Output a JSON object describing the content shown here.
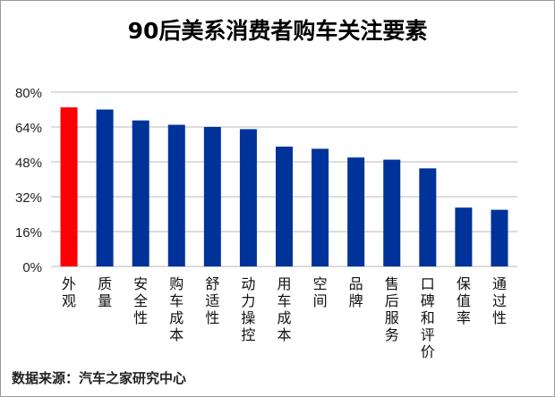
{
  "chart_data": {
    "type": "bar",
    "title": "90后美系消费者购车关注要素",
    "categories": [
      "外观",
      "质量",
      "安全性",
      "购车成本",
      "舒适性",
      "动力操控",
      "用车成本",
      "空间",
      "品牌",
      "售后服务",
      "口碑和评价",
      "保值率",
      "通过性"
    ],
    "values": [
      73,
      72,
      67,
      65,
      64,
      63,
      55,
      54,
      50,
      49,
      45,
      27,
      26
    ],
    "ylim": [
      0,
      80
    ],
    "yticks": [
      "0%",
      "16%",
      "32%",
      "48%",
      "64%",
      "80%"
    ],
    "grid": true,
    "colors": {
      "highlight": "#FF0000",
      "bar": "#003399"
    },
    "highlight_index": 0
  },
  "source": "数据来源：汽车之家研究中心"
}
